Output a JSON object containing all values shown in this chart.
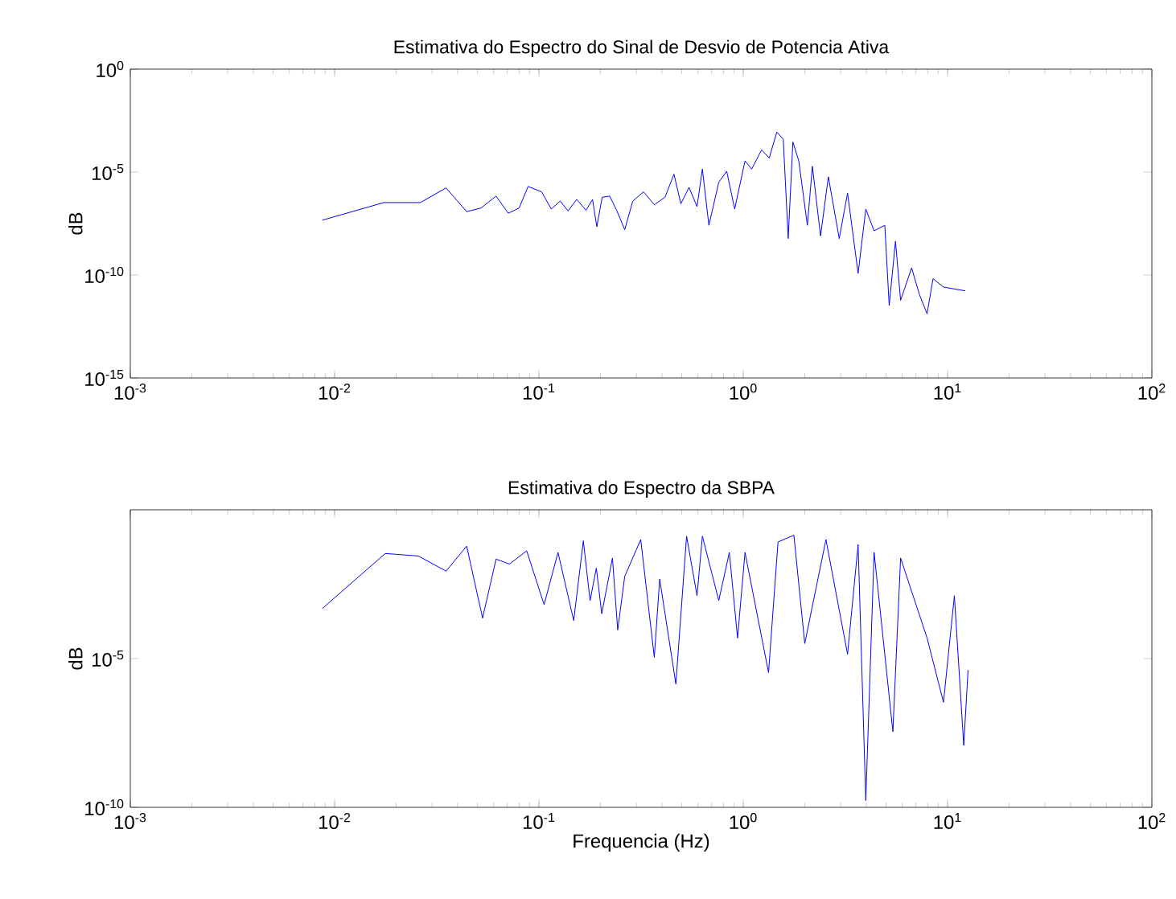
{
  "chart_data": [
    {
      "type": "line",
      "title": "Estimativa do Espectro do Sinal de Desvio de Potencia Ativa",
      "ylabel": "dB",
      "log": "xy",
      "color": "#0000ff",
      "xlim": [
        0.001,
        100
      ],
      "ylim": [
        1e-15,
        1
      ],
      "xticks": [
        {
          "value": 0.001,
          "label": "10$^{-3}$"
        },
        {
          "value": 0.01,
          "label": "10$^{-2}$"
        },
        {
          "value": 0.1,
          "label": "10$^{-1}$"
        },
        {
          "value": 1,
          "label": "10$^{0}$"
        },
        {
          "value": 10,
          "label": "10$^{1}$"
        },
        {
          "value": 100,
          "label": "10$^{2}$"
        }
      ],
      "yticks": [
        {
          "value": 1e-15,
          "label": "10$^{-15}$"
        },
        {
          "value": 1e-10,
          "label": "10$^{-10}$"
        },
        {
          "value": 1e-05,
          "label": "10$^{-5}$"
        },
        {
          "value": 1,
          "label": "10$^{0}$"
        }
      ],
      "x": [
        0.0087,
        0.0174,
        0.0263,
        0.0351,
        0.0443,
        0.0521,
        0.0617,
        0.0708,
        0.08,
        0.0885,
        0.103,
        0.115,
        0.127,
        0.139,
        0.153,
        0.17,
        0.183,
        0.192,
        0.204,
        0.222,
        0.24,
        0.263,
        0.288,
        0.325,
        0.367,
        0.414,
        0.458,
        0.495,
        0.543,
        0.594,
        0.631,
        0.679,
        0.759,
        0.83,
        0.908,
        1.02,
        1.1,
        1.23,
        1.34,
        1.46,
        1.57,
        1.66,
        1.75,
        1.87,
        2.06,
        2.18,
        2.39,
        2.61,
        2.95,
        3.24,
        3.65,
        3.98,
        4.37,
        4.93,
        5.18,
        5.56,
        5.89,
        6.67,
        7.29,
        7.94,
        8.49,
        9.55,
        12.2
      ],
      "values": [
        4.6e-08,
        3.3e-07,
        3.3e-07,
        1.7e-06,
        1.2e-07,
        1.8e-07,
        6.8e-07,
        1e-07,
        1.8e-07,
        2e-06,
        1.1e-06,
        1.6e-07,
        3.9e-07,
        1.3e-07,
        4.7e-07,
        1.4e-07,
        4.7e-07,
        2.2e-08,
        6e-07,
        6.8e-07,
        1.4e-07,
        1.6e-08,
        3.9e-07,
        1.1e-06,
        2.6e-07,
        6e-07,
        7.9e-06,
        2.9e-07,
        1.8e-06,
        2.1e-07,
        1.4e-05,
        2.6e-08,
        3.2e-06,
        1.1e-05,
        1.6e-07,
        3.5e-05,
        1.4e-05,
        0.00012,
        4.8e-05,
        0.00089,
        0.00039,
        5.9e-09,
        0.00029,
        3.5e-05,
        2.6e-08,
        1.9e-05,
        7.9e-09,
        5.9e-06,
        5.9e-09,
        9.5e-07,
        1.2e-10,
        1.6e-07,
        1.4e-08,
        2.6e-08,
        3.3e-12,
        4.4e-09,
        5.9e-12,
        2.2e-10,
        1.1e-11,
        1.3e-12,
        6.6e-11,
        2.6e-11,
        1.7e-11
      ]
    },
    {
      "type": "line",
      "title": "Estimativa do Espectro da SBPA",
      "ylabel": "dB",
      "xlabel": "Frequencia (Hz)",
      "log": "xy",
      "color": "#0000ff",
      "xlim": [
        0.001,
        100
      ],
      "ylim": [
        1e-10,
        1
      ],
      "xticks": [
        {
          "value": 0.001,
          "label": "10$^{-3}$"
        },
        {
          "value": 0.01,
          "label": "10$^{-2}$"
        },
        {
          "value": 0.1,
          "label": "10$^{-1}$"
        },
        {
          "value": 1,
          "label": "10$^{0}$"
        },
        {
          "value": 10,
          "label": "10$^{1}$"
        },
        {
          "value": 100,
          "label": "10$^{2}$"
        }
      ],
      "yticks": [
        {
          "value": 1e-10,
          "label": "10$^{-10}$"
        },
        {
          "value": 1e-05,
          "label": "10$^{-5}$"
        }
      ],
      "x": [
        0.0087,
        0.0177,
        0.0257,
        0.0351,
        0.0443,
        0.053,
        0.0617,
        0.0718,
        0.0871,
        0.106,
        0.124,
        0.148,
        0.165,
        0.178,
        0.191,
        0.203,
        0.229,
        0.243,
        0.263,
        0.315,
        0.367,
        0.39,
        0.468,
        0.528,
        0.594,
        0.631,
        0.759,
        0.855,
        0.938,
        1.02,
        1.33,
        1.48,
        1.77,
        2.0,
        2.54,
        3.24,
        3.65,
        3.98,
        4.37,
        5.4,
        5.89,
        7.94,
        9.55,
        10.8,
        12.0,
        12.6
      ],
      "values": [
        0.00048,
        0.034,
        0.028,
        0.0087,
        0.06,
        0.00023,
        0.022,
        0.015,
        0.042,
        0.00065,
        0.037,
        0.00019,
        0.091,
        0.00089,
        0.011,
        0.00032,
        0.024,
        9.1e-05,
        0.0058,
        0.1,
        1.1e-05,
        0.0047,
        1.4e-06,
        0.13,
        0.0013,
        0.13,
        0.00089,
        0.037,
        4.9e-05,
        0.037,
        3.4e-06,
        0.083,
        0.14,
        3.2e-05,
        0.1,
        1.4e-05,
        0.068,
        1.7e-10,
        0.037,
        3.5e-08,
        0.024,
        4.9e-05,
        3.4e-07,
        0.0013,
        1.2e-08,
        4.1e-06
      ]
    }
  ]
}
